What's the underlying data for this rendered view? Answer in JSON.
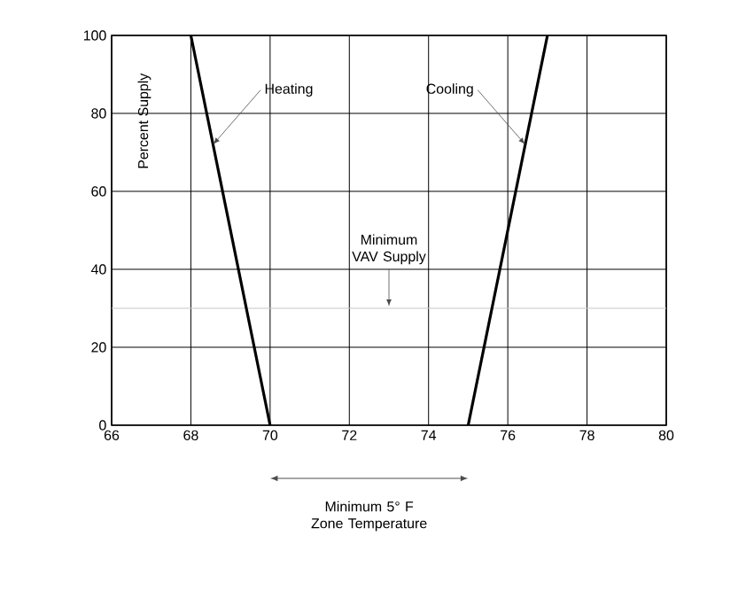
{
  "chart_data": {
    "type": "line",
    "xlabel": "Minimum 5° F Zone Temperature",
    "ylabel": "Percent Supply",
    "series": [
      {
        "color": "#000000",
        "x": [
          68,
          70
        ],
        "values": [
          100,
          0
        ]
      },
      {
        "color": "#000000",
        "x": [
          75,
          77
        ],
        "values": [
          0,
          100
        ]
      }
    ],
    "xlim": [
      66,
      80
    ],
    "ylim": [
      0,
      100
    ],
    "xticks": [
      66,
      68,
      70,
      72,
      74,
      76,
      78,
      80
    ],
    "yticks": [
      0,
      20,
      40,
      60,
      80,
      100
    ],
    "grid": true,
    "ref_lines": [
      {
        "axis": "y",
        "value": 30,
        "label": "Minimum VAV Supply",
        "color": "#c8c8c8"
      }
    ],
    "annotations": [
      {
        "text": "Heating",
        "x": 68.56,
        "y": 72
      },
      {
        "text": "Cooling",
        "x": 76.44,
        "y": 72
      }
    ]
  }
}
